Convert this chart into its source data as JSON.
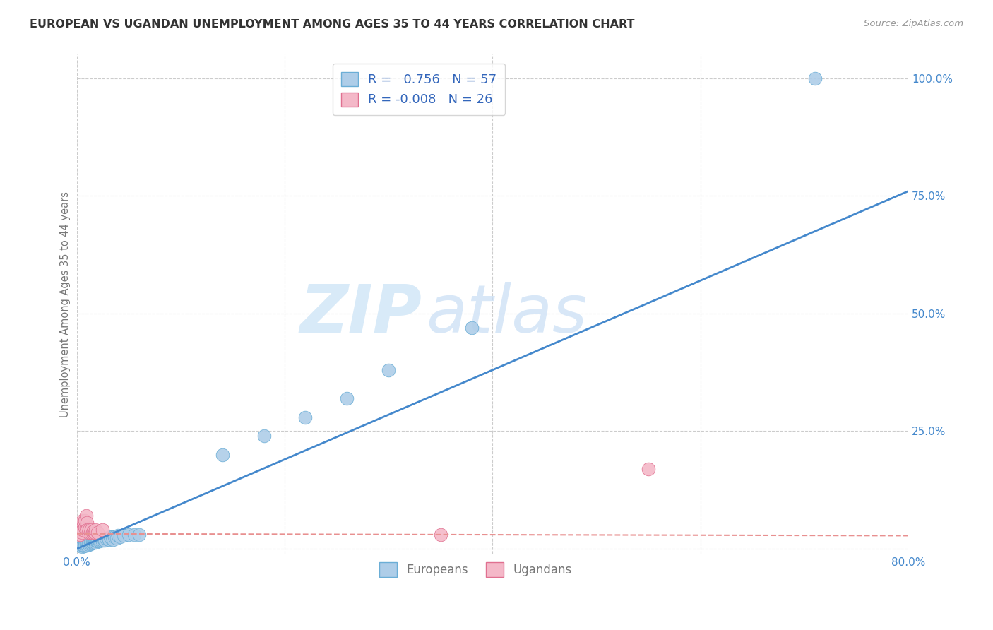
{
  "title": "EUROPEAN VS UGANDAN UNEMPLOYMENT AMONG AGES 35 TO 44 YEARS CORRELATION CHART",
  "source": "Source: ZipAtlas.com",
  "ylabel": "Unemployment Among Ages 35 to 44 years",
  "xlim": [
    0.0,
    0.8
  ],
  "ylim": [
    -0.01,
    1.05
  ],
  "euro_R": 0.756,
  "euro_N": 57,
  "ugandan_R": -0.008,
  "ugandan_N": 26,
  "euro_color": "#aecde8",
  "euro_edge": "#6baed6",
  "ugandan_color": "#f4b8c8",
  "ugandan_edge": "#e07090",
  "blue_line_color": "#4488cc",
  "pink_line_color": "#e89090",
  "watermark_color": "#d0e8f8",
  "background_color": "#ffffff",
  "grid_color": "#cccccc",
  "title_color": "#333333",
  "label_color": "#777777",
  "legend_R_color": "#3366bb",
  "axis_tick_color": "#4488cc",
  "euro_x": [
    0.005,
    0.006,
    0.007,
    0.008,
    0.008,
    0.009,
    0.009,
    0.01,
    0.01,
    0.011,
    0.011,
    0.012,
    0.012,
    0.013,
    0.013,
    0.014,
    0.014,
    0.015,
    0.015,
    0.016,
    0.016,
    0.017,
    0.017,
    0.018,
    0.018,
    0.019,
    0.019,
    0.02,
    0.021,
    0.022,
    0.023,
    0.024,
    0.025,
    0.026,
    0.027,
    0.028,
    0.03,
    0.031,
    0.032,
    0.033,
    0.034,
    0.035,
    0.036,
    0.038,
    0.04,
    0.042,
    0.045,
    0.05,
    0.055,
    0.06,
    0.14,
    0.18,
    0.22,
    0.26,
    0.3,
    0.38,
    0.71
  ],
  "euro_y": [
    0.005,
    0.008,
    0.006,
    0.01,
    0.007,
    0.009,
    0.012,
    0.008,
    0.015,
    0.01,
    0.012,
    0.009,
    0.014,
    0.01,
    0.015,
    0.012,
    0.016,
    0.013,
    0.018,
    0.014,
    0.018,
    0.015,
    0.016,
    0.014,
    0.018,
    0.016,
    0.02,
    0.016,
    0.018,
    0.016,
    0.018,
    0.02,
    0.018,
    0.02,
    0.018,
    0.022,
    0.022,
    0.02,
    0.025,
    0.022,
    0.025,
    0.02,
    0.025,
    0.022,
    0.028,
    0.025,
    0.028,
    0.03,
    0.03,
    0.03,
    0.2,
    0.24,
    0.28,
    0.32,
    0.38,
    0.47,
    1.0
  ],
  "ugandan_x": [
    0.003,
    0.004,
    0.005,
    0.005,
    0.006,
    0.006,
    0.007,
    0.007,
    0.008,
    0.008,
    0.009,
    0.009,
    0.01,
    0.01,
    0.011,
    0.012,
    0.013,
    0.014,
    0.015,
    0.016,
    0.017,
    0.018,
    0.02,
    0.025,
    0.35,
    0.55
  ],
  "ugandan_y": [
    0.03,
    0.04,
    0.05,
    0.035,
    0.06,
    0.04,
    0.05,
    0.055,
    0.045,
    0.06,
    0.045,
    0.07,
    0.055,
    0.04,
    0.035,
    0.04,
    0.035,
    0.04,
    0.035,
    0.038,
    0.035,
    0.04,
    0.035,
    0.04,
    0.03,
    0.17
  ],
  "blue_line_x": [
    0.0,
    0.8
  ],
  "blue_line_y": [
    0.0,
    0.76
  ],
  "pink_line_x": [
    0.0,
    0.8
  ],
  "pink_line_y": [
    0.032,
    0.028
  ]
}
